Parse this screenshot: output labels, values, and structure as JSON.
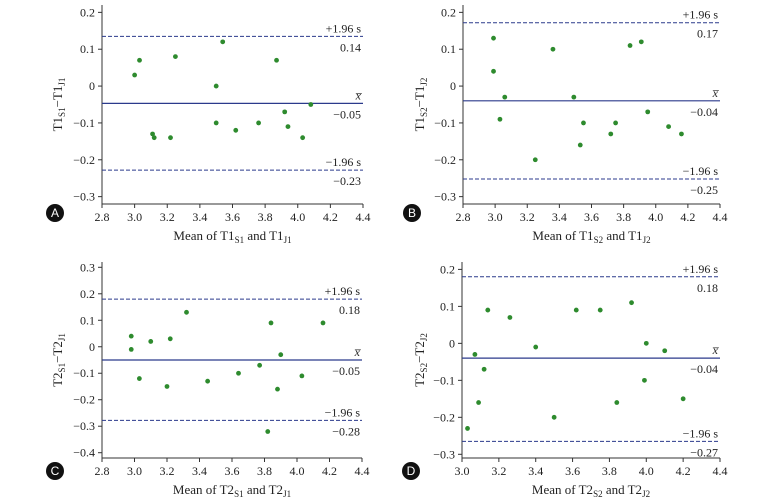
{
  "colors": {
    "point": "#2e8b2e",
    "line": "#2b3a8c",
    "axis": "#333333",
    "badge": "#111111"
  },
  "chart_data": [
    {
      "type": "scatter",
      "panel": "A",
      "xlabel": {
        "main": "Mean of T1",
        "sub1": "S1",
        "mid": " and T1",
        "sub2": "J1"
      },
      "ylabel": {
        "a": "T1",
        "asub": "S1",
        "b": "−T1",
        "bsub": "J1"
      },
      "xlim": [
        2.8,
        4.4
      ],
      "ylim": [
        -0.32,
        0.22
      ],
      "xticks": [
        2.8,
        3.0,
        3.2,
        3.4,
        3.6,
        3.8,
        4.0,
        4.2,
        4.4
      ],
      "xtick_labels": [
        "2.8",
        "3.0",
        "3.2",
        "3.4",
        "3.6",
        "3.8",
        "4.0",
        "4.2",
        "4.4"
      ],
      "yticks": [
        0.2,
        0.1,
        0,
        -0.1,
        -0.2,
        -0.3
      ],
      "ytick_labels": [
        "0.2",
        "0.1",
        "0",
        "−0.1",
        "−0.2",
        "−0.3"
      ],
      "mean": -0.047,
      "upper": 0.135,
      "lower": -0.228,
      "labels": {
        "upper_top": "+1.96 s",
        "upper_val": "0.14",
        "mean_top": "x̅",
        "mean_val": "−0.05",
        "lower_top": "−1.96 s",
        "lower_val": "−0.23"
      },
      "points": [
        [
          3.0,
          0.03
        ],
        [
          3.03,
          0.07
        ],
        [
          3.11,
          -0.13
        ],
        [
          3.12,
          -0.14
        ],
        [
          3.22,
          -0.14
        ],
        [
          3.25,
          0.08
        ],
        [
          3.5,
          0.0
        ],
        [
          3.5,
          -0.1
        ],
        [
          3.54,
          0.12
        ],
        [
          3.62,
          -0.12
        ],
        [
          3.76,
          -0.1
        ],
        [
          3.87,
          0.07
        ],
        [
          3.92,
          -0.07
        ],
        [
          3.94,
          -0.11
        ],
        [
          4.03,
          -0.14
        ],
        [
          4.08,
          -0.05
        ]
      ]
    },
    {
      "type": "scatter",
      "panel": "B",
      "xlabel": {
        "main": "Mean of T1",
        "sub1": "S2",
        "mid": " and T1",
        "sub2": "J2"
      },
      "ylabel": {
        "a": "T1",
        "asub": "S2",
        "b": "−T1",
        "bsub": "J2"
      },
      "xlim": [
        2.8,
        4.4
      ],
      "ylim": [
        -0.32,
        0.22
      ],
      "xticks": [
        2.8,
        3.0,
        3.2,
        3.4,
        3.6,
        3.8,
        4.0,
        4.2,
        4.4
      ],
      "xtick_labels": [
        "2.8",
        "3.0",
        "3.2",
        "3.4",
        "3.6",
        "3.8",
        "4.0",
        "4.2",
        "4.4"
      ],
      "yticks": [
        0.2,
        0.1,
        0,
        -0.1,
        -0.2,
        -0.3
      ],
      "ytick_labels": [
        "0.2",
        "0.1",
        "0",
        "−0.1",
        "−0.2",
        "−0.3"
      ],
      "mean": -0.04,
      "upper": 0.172,
      "lower": -0.252,
      "labels": {
        "upper_top": "+1.96 s",
        "upper_val": "0.17",
        "mean_top": "x̅",
        "mean_val": "−0.04",
        "lower_top": "−1.96 s",
        "lower_val": "−0.25"
      },
      "points": [
        [
          2.99,
          0.13
        ],
        [
          2.99,
          0.04
        ],
        [
          3.03,
          -0.09
        ],
        [
          3.06,
          -0.03
        ],
        [
          3.25,
          -0.2
        ],
        [
          3.36,
          0.1
        ],
        [
          3.49,
          -0.03
        ],
        [
          3.53,
          -0.16
        ],
        [
          3.55,
          -0.1
        ],
        [
          3.72,
          -0.13
        ],
        [
          3.75,
          -0.1
        ],
        [
          3.84,
          0.11
        ],
        [
          3.91,
          0.12
        ],
        [
          3.95,
          -0.07
        ],
        [
          4.08,
          -0.11
        ],
        [
          4.16,
          -0.13
        ]
      ]
    },
    {
      "type": "scatter",
      "panel": "C",
      "xlabel": {
        "main": "Mean of T2",
        "sub1": "S1",
        "mid": " and T2",
        "sub2": "J1"
      },
      "ylabel": {
        "a": "T2",
        "asub": "S1",
        "b": "−T2",
        "bsub": "J1"
      },
      "xlim": [
        2.8,
        4.4
      ],
      "ylim": [
        -0.42,
        0.32
      ],
      "xticks": [
        2.8,
        3.0,
        3.2,
        3.4,
        3.6,
        3.8,
        4.0,
        4.2,
        4.4
      ],
      "xtick_labels": [
        "2.8",
        "3.0",
        "3.2",
        "3.4",
        "3.6",
        "3.8",
        "4.0",
        "4.2",
        "4.4"
      ],
      "yticks": [
        0.3,
        0.2,
        0.1,
        0,
        -0.1,
        -0.2,
        -0.3,
        -0.4
      ],
      "ytick_labels": [
        "0.3",
        "0.2",
        "0.1",
        "0",
        "−0.1",
        "−0.2",
        "−0.3",
        "−0.4"
      ],
      "mean": -0.05,
      "upper": 0.18,
      "lower": -0.278,
      "labels": {
        "upper_top": "+1.96 s",
        "upper_val": "0.18",
        "mean_top": "x̅",
        "mean_val": "−0.05",
        "lower_top": "−1.96 s",
        "lower_val": "−0.28"
      },
      "points": [
        [
          2.98,
          0.04
        ],
        [
          2.98,
          -0.01
        ],
        [
          3.03,
          -0.12
        ],
        [
          3.1,
          0.02
        ],
        [
          3.2,
          -0.15
        ],
        [
          3.22,
          0.03
        ],
        [
          3.32,
          0.13
        ],
        [
          3.45,
          -0.13
        ],
        [
          3.64,
          -0.1
        ],
        [
          3.77,
          -0.07
        ],
        [
          3.82,
          -0.32
        ],
        [
          3.84,
          0.09
        ],
        [
          3.88,
          -0.16
        ],
        [
          3.9,
          -0.03
        ],
        [
          4.03,
          -0.11
        ],
        [
          4.16,
          0.09
        ]
      ]
    },
    {
      "type": "scatter",
      "panel": "D",
      "xlabel": {
        "main": "Mean of T2",
        "sub1": "S2",
        "mid": " and T2",
        "sub2": "J2"
      },
      "ylabel": {
        "a": "T2",
        "asub": "S2",
        "b": "−T2",
        "bsub": "J2"
      },
      "xlim": [
        3.0,
        4.4
      ],
      "ylim": [
        -0.31,
        0.22
      ],
      "xticks": [
        3.0,
        3.2,
        3.4,
        3.6,
        3.8,
        4.0,
        4.2,
        4.4
      ],
      "xtick_labels": [
        "3.0",
        "3.2",
        "3.4",
        "3.6",
        "3.8",
        "4.0",
        "4.2",
        "4.4"
      ],
      "yticks": [
        0.2,
        0.1,
        0,
        -0.1,
        -0.2,
        -0.3
      ],
      "ytick_labels": [
        "0.2",
        "0.1",
        "0",
        "−0.1",
        "−0.2",
        "−0.3"
      ],
      "mean": -0.04,
      "upper": 0.18,
      "lower": -0.265,
      "labels": {
        "upper_top": "+1.96 s",
        "upper_val": "0.18",
        "mean_top": "x̅",
        "mean_val": "−0.04",
        "lower_top": "−1.96 s",
        "lower_val": "−0.27"
      },
      "points": [
        [
          3.03,
          -0.23
        ],
        [
          3.07,
          -0.03
        ],
        [
          3.09,
          -0.16
        ],
        [
          3.12,
          -0.07
        ],
        [
          3.14,
          0.09
        ],
        [
          3.26,
          0.07
        ],
        [
          3.4,
          -0.01
        ],
        [
          3.5,
          -0.2
        ],
        [
          3.62,
          0.09
        ],
        [
          3.75,
          0.09
        ],
        [
          3.84,
          -0.16
        ],
        [
          3.92,
          0.11
        ],
        [
          3.99,
          -0.1
        ],
        [
          4.0,
          0.0
        ],
        [
          4.1,
          -0.02
        ],
        [
          4.2,
          -0.15
        ]
      ]
    }
  ]
}
